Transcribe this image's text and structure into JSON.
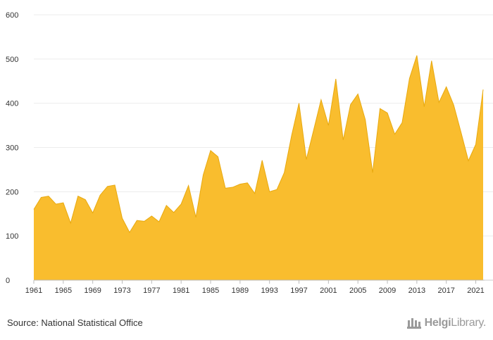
{
  "chart_data": {
    "type": "area",
    "x": [
      1961,
      1962,
      1963,
      1964,
      1965,
      1966,
      1967,
      1968,
      1969,
      1970,
      1971,
      1972,
      1973,
      1974,
      1975,
      1976,
      1977,
      1978,
      1979,
      1980,
      1981,
      1982,
      1983,
      1984,
      1985,
      1986,
      1987,
      1988,
      1989,
      1990,
      1991,
      1992,
      1993,
      1994,
      1995,
      1996,
      1997,
      1998,
      1999,
      2000,
      2001,
      2002,
      2003,
      2004,
      2005,
      2006,
      2007,
      2008,
      2009,
      2010,
      2011,
      2012,
      2013,
      2014,
      2015,
      2016,
      2017,
      2018,
      2019,
      2020,
      2021,
      2022
    ],
    "values": [
      160,
      187,
      190,
      172,
      175,
      129,
      190,
      182,
      152,
      192,
      212,
      215,
      140,
      108,
      135,
      133,
      145,
      132,
      169,
      153,
      172,
      214,
      142,
      238,
      293,
      279,
      208,
      210,
      217,
      220,
      196,
      271,
      200,
      205,
      243,
      327,
      400,
      273,
      340,
      408,
      350,
      455,
      317,
      397,
      421,
      363,
      243,
      388,
      378,
      330,
      356,
      456,
      508,
      392,
      496,
      402,
      437,
      396,
      334,
      270,
      307,
      431
    ],
    "xticks": [
      "1961",
      "1965",
      "1969",
      "1973",
      "1977",
      "1981",
      "1985",
      "1989",
      "1993",
      "1997",
      "2001",
      "2005",
      "2009",
      "2013",
      "2017",
      "2021"
    ],
    "yticks": [
      "0",
      "100",
      "200",
      "300",
      "400",
      "500",
      "600"
    ],
    "ylim": [
      0,
      600
    ],
    "xlim": [
      1961,
      2022
    ],
    "grid": true,
    "fill_color": "#f9bd2e",
    "line_color": "#e8a90f",
    "title": "",
    "xlabel": "",
    "ylabel": ""
  },
  "footer": {
    "source": "Source: National Statistical Office",
    "brand_bold": "Helgi",
    "brand_light": "Library."
  }
}
